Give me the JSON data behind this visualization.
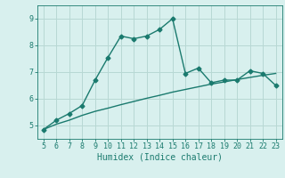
{
  "xlabel": "Humidex (Indice chaleur)",
  "x_data": [
    5,
    6,
    7,
    8,
    9,
    10,
    11,
    12,
    13,
    14,
    15,
    16,
    17,
    18,
    19,
    20,
    21,
    22,
    23
  ],
  "y_main": [
    4.85,
    5.2,
    5.45,
    5.75,
    6.7,
    7.55,
    8.35,
    8.25,
    8.35,
    8.6,
    9.0,
    6.95,
    7.15,
    6.6,
    6.7,
    6.7,
    7.05,
    6.95,
    6.5
  ],
  "y_trend": [
    4.85,
    5.05,
    5.2,
    5.38,
    5.53,
    5.65,
    5.78,
    5.9,
    6.02,
    6.13,
    6.25,
    6.35,
    6.45,
    6.55,
    6.63,
    6.72,
    6.8,
    6.88,
    6.95
  ],
  "line_color": "#1a7a6e",
  "bg_color": "#d8f0ee",
  "grid_color": "#b8d8d4",
  "xlim": [
    4.5,
    23.5
  ],
  "ylim": [
    4.5,
    9.5
  ],
  "xticks": [
    5,
    6,
    7,
    8,
    9,
    10,
    11,
    12,
    13,
    14,
    15,
    16,
    17,
    18,
    19,
    20,
    21,
    22,
    23
  ],
  "yticks": [
    5,
    6,
    7,
    8,
    9
  ],
  "marker": "D",
  "markersize": 2.5,
  "linewidth": 1.0,
  "tick_fontsize": 6.0,
  "xlabel_fontsize": 7.0
}
